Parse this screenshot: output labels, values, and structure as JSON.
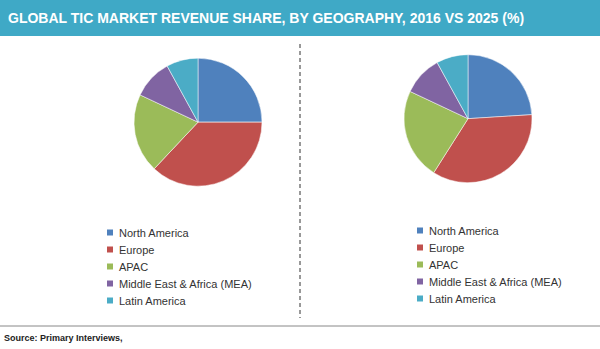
{
  "title": "GLOBAL TIC MARKET REVENUE SHARE, BY GEOGRAPHY, 2016 VS 2025 (%)",
  "source": "Source: Primary Interviews,",
  "chart_data": [
    {
      "type": "pie",
      "categories": [
        "North America",
        "Europe",
        "APAC",
        "Middle East & Africa (MEA)",
        "Latin America"
      ],
      "values": [
        25,
        37,
        20,
        10,
        8
      ],
      "colors": [
        "#4f81bd",
        "#c0504d",
        "#9bbb59",
        "#8064a2",
        "#4bacc6"
      ],
      "legend": "bottom"
    },
    {
      "type": "pie",
      "categories": [
        "North America",
        "Europe",
        "APAC",
        "Middle East & Africa (MEA)",
        "Latin America"
      ],
      "values": [
        24,
        35,
        23,
        10,
        8
      ],
      "colors": [
        "#4f81bd",
        "#c0504d",
        "#9bbb59",
        "#8064a2",
        "#4bacc6"
      ],
      "legend": "bottom"
    }
  ]
}
